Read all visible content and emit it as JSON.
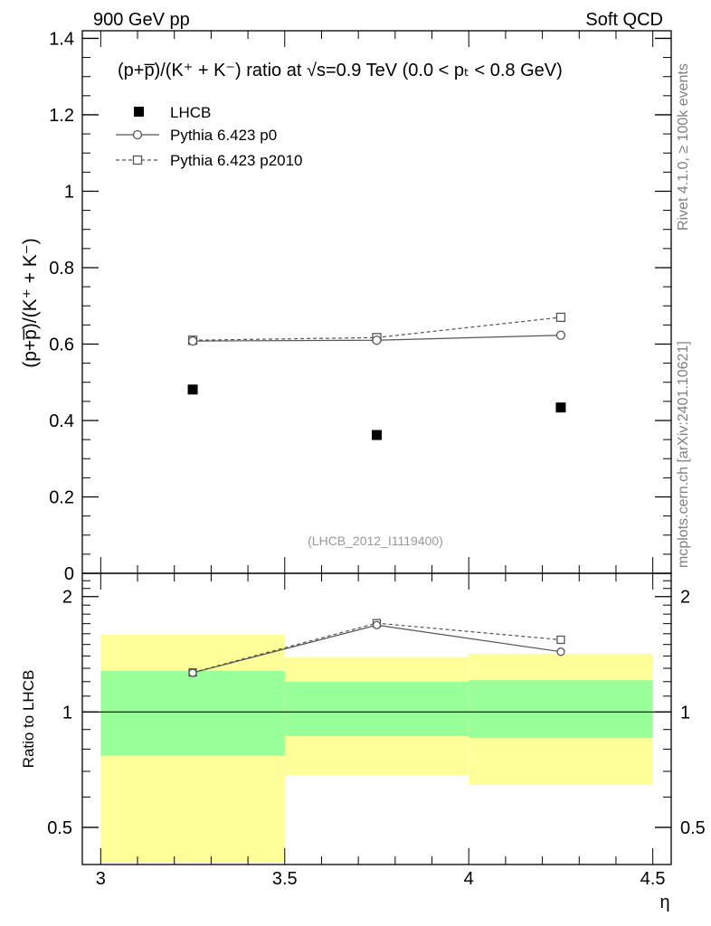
{
  "header": {
    "left": "900 GeV pp",
    "right": "Soft QCD"
  },
  "side_labels": {
    "rivet": "Rivet 4.1.0, ≥ 100k events",
    "mcplots": "mcplots.cern.ch [arXiv:2401.10621]"
  },
  "main_plot": {
    "title": "(p+p̅)/(K⁺ + K⁻) ratio at √s=0.9 TeV (0.0 < pₜ < 0.8 GeV)",
    "ylabel": "(p+p̅)/(K⁺ + K⁻)",
    "watermark": "(LHCB_2012_I1119400)",
    "y_ticks": [
      "0",
      "0.2",
      "0.4",
      "0.6",
      "0.8",
      "1",
      "1.2",
      "1.4"
    ]
  },
  "ratio_plot": {
    "ylabel": "Ratio to LHCB",
    "y_ticks": [
      "0.5",
      "1",
      "2"
    ],
    "x_ticks": [
      "3",
      "3.5",
      "4",
      "4.5"
    ],
    "xlabel": "η"
  },
  "legend": [
    {
      "label": "LHCB",
      "style": "data"
    },
    {
      "label": "Pythia 6.423 p0",
      "style": "solid-circle"
    },
    {
      "label": "Pythia 6.423 p2010",
      "style": "dashed-square"
    }
  ],
  "chart_data": {
    "type": "scatter",
    "title": "(p+p̅)/(K⁺ + K⁻) ratio at √s=0.9 TeV (0.0 < pₜ < 0.8 GeV)",
    "xlabel": "η",
    "ylabel": "(p+p̅)/(K⁺ + K⁻)",
    "xlim": [
      2.95,
      4.55
    ],
    "ylim": [
      0,
      1.42
    ],
    "ratio_ylim": [
      0.4,
      2.3
    ],
    "x": [
      3.25,
      3.75,
      4.25
    ],
    "bin_edges": [
      3.0,
      3.5,
      4.0,
      4.5
    ],
    "series": [
      {
        "name": "LHCB",
        "values": [
          0.481,
          0.362,
          0.434
        ]
      },
      {
        "name": "Pythia 6.423 p0",
        "values": [
          0.608,
          0.61,
          0.623
        ],
        "errors": [
          0.012,
          0.01,
          0.01
        ],
        "ratio": [
          1.265,
          1.685,
          1.436
        ]
      },
      {
        "name": "Pythia 6.423 p2010",
        "values": [
          0.61,
          0.617,
          0.67
        ],
        "errors": [
          0.012,
          0.01,
          0.01
        ],
        "ratio": [
          1.268,
          1.705,
          1.543
        ]
      }
    ],
    "bands": {
      "inner_green": [
        [
          0.77,
          1.28
        ],
        [
          0.865,
          1.2
        ],
        [
          0.855,
          1.21
        ]
      ],
      "outer_yellow": [
        [
          0.405,
          1.59
        ],
        [
          0.685,
          1.39
        ],
        [
          0.645,
          1.42
        ]
      ]
    },
    "colors": {
      "green": "#99ff99",
      "yellow": "#ffff99",
      "mc": "#555555",
      "data": "#000000"
    }
  }
}
